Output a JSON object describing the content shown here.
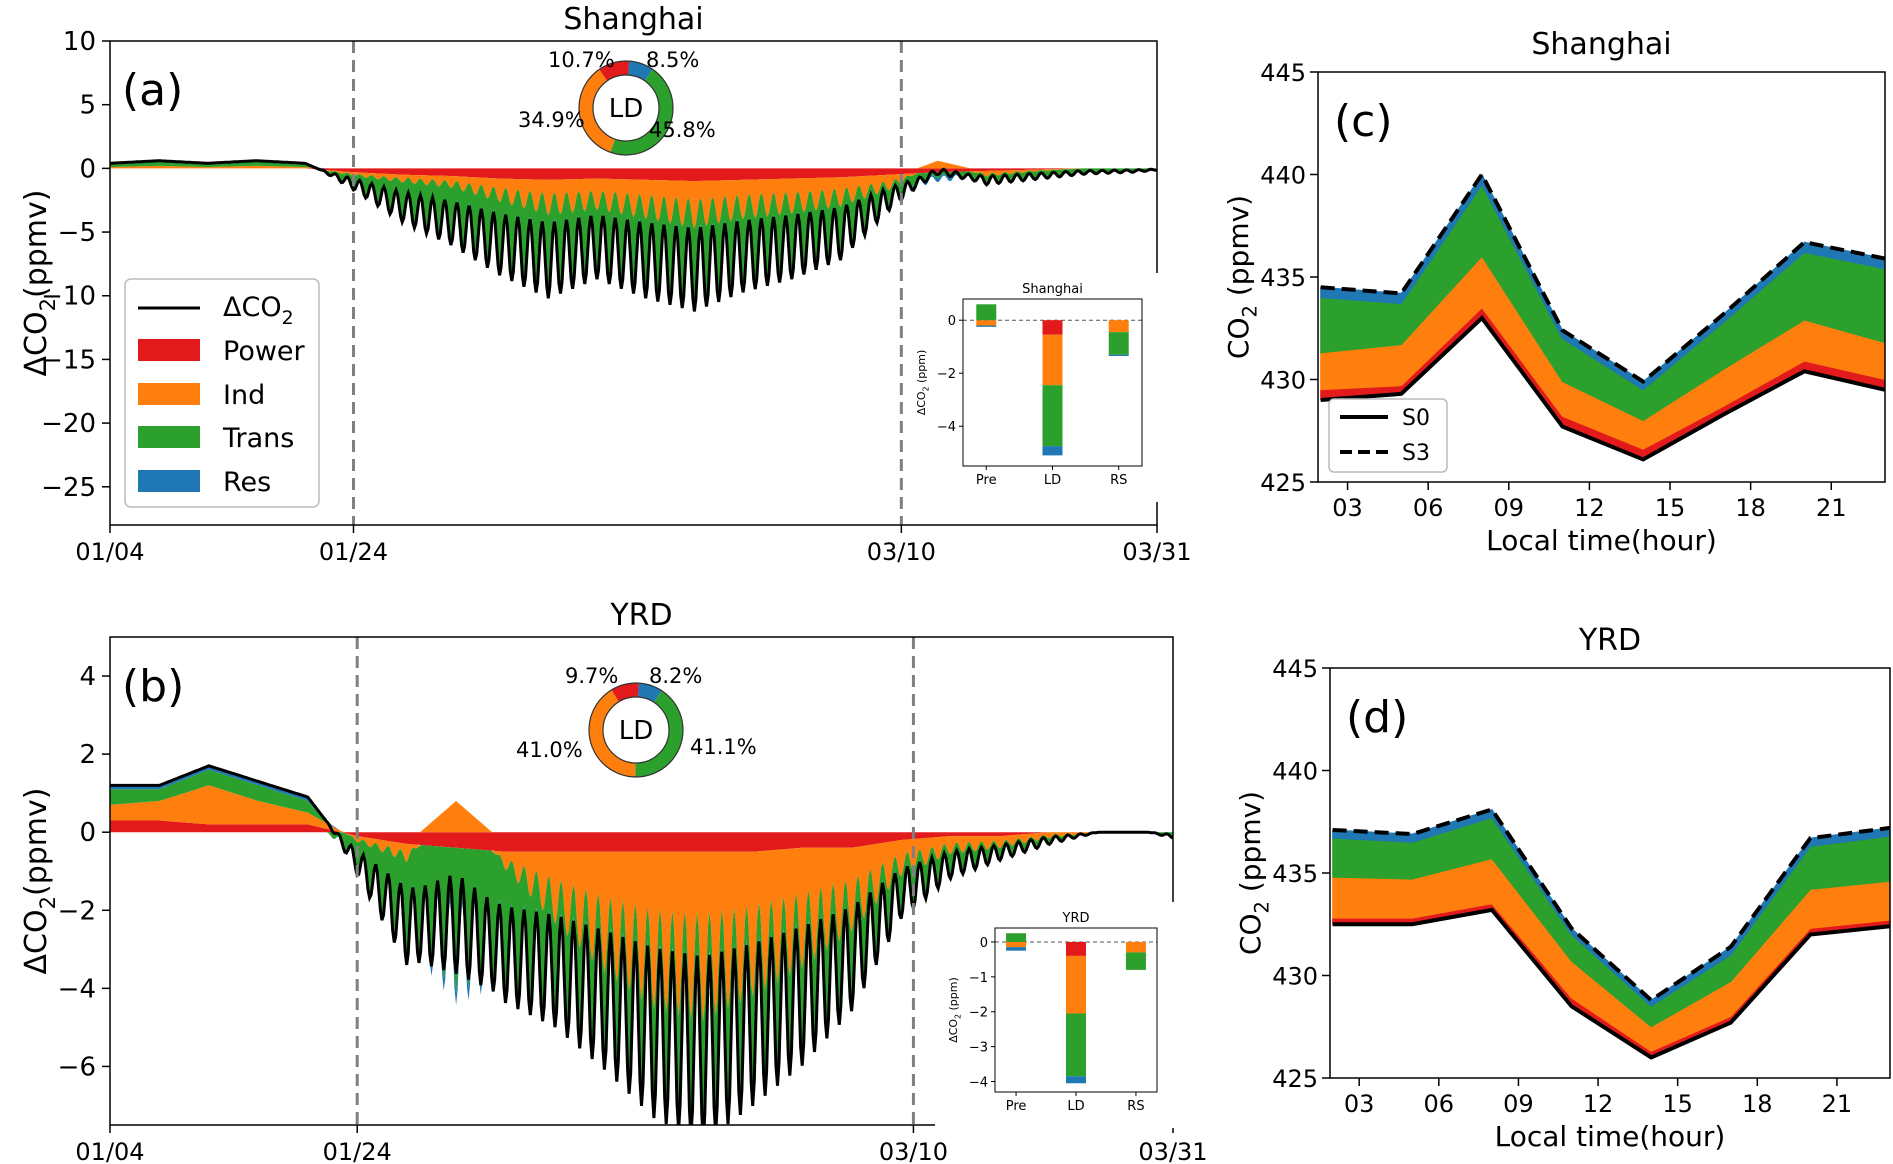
{
  "colors": {
    "power": "#e31a1c",
    "ind": "#ff7f0e",
    "trans": "#2ca02c",
    "res": "#1f77b4",
    "total": "#000000",
    "marker": "#808080"
  },
  "panels": {
    "a": {
      "title": "Shanghai",
      "label": "(a)",
      "ylabel": "ΔCO",
      "ylabel_sub": "2",
      "ylabel_unit": "(ppmv)"
    },
    "b": {
      "title": "YRD",
      "label": "(b)",
      "ylabel": "ΔCO",
      "ylabel_sub": "2",
      "ylabel_unit": "(ppmv)"
    },
    "c": {
      "title": "Shanghai",
      "label": "(c)",
      "ylabel": "CO",
      "ylabel_sub": "2",
      "ylabel_unit": " (ppmv)",
      "xlabel": "Local time(hour)"
    },
    "d": {
      "title": "YRD",
      "label": "(d)",
      "ylabel": "CO",
      "ylabel_sub": "2",
      "ylabel_unit": " (ppmv)",
      "xlabel": "Local time(hour)"
    }
  },
  "legend_ab": {
    "total": "ΔCO",
    "total_sub": "2",
    "power": "Power",
    "ind": "Ind",
    "trans": "Trans",
    "res": "Res"
  },
  "legend_cd": {
    "s0": "S0",
    "s3": "S3"
  },
  "donuts": {
    "a": {
      "center": "LD",
      "labels": [
        "10.7%",
        "8.5%",
        "45.8%",
        "34.9%"
      ],
      "values": {
        "power": 10.7,
        "res": 8.5,
        "trans": 45.8,
        "ind": 34.9
      }
    },
    "b": {
      "center": "LD",
      "labels": [
        "9.7%",
        "8.2%",
        "41.1%",
        "41.0%"
      ],
      "values": {
        "power": 9.7,
        "res": 8.2,
        "trans": 41.1,
        "ind": 41.0
      }
    }
  },
  "chart_data": [
    {
      "panel": "a",
      "type": "area",
      "title": "Shanghai",
      "ylabel": "ΔCO2(ppmv)",
      "ylim": [
        -28,
        10
      ],
      "yticks": [
        10,
        5,
        0,
        -5,
        -10,
        -15,
        -20,
        -25
      ],
      "xticks": [
        "01/04",
        "01/24",
        "03/10",
        "03/31"
      ],
      "tick_day_positions": [
        0,
        20,
        65,
        86
      ],
      "period_markers": [
        "01/24",
        "03/10"
      ],
      "x_days": [
        0,
        4,
        8,
        12,
        16,
        20,
        24,
        28,
        32,
        36,
        40,
        44,
        48,
        52,
        56,
        60,
        64,
        68,
        72,
        76,
        80,
        84,
        86
      ],
      "series": [
        {
          "name": "Power",
          "values": [
            0,
            0,
            0,
            0,
            0,
            -0.3,
            -0.5,
            -0.6,
            -0.8,
            -0.9,
            -0.8,
            -0.9,
            -1.0,
            -0.9,
            -0.8,
            -0.7,
            -0.5,
            -0.3,
            -0.2,
            -0.1,
            0,
            0,
            0
          ]
        },
        {
          "name": "Ind",
          "values": [
            0.1,
            0.2,
            0.1,
            0.2,
            0.1,
            -0.2,
            -0.4,
            -0.6,
            -1.2,
            -1.8,
            -1.6,
            -2.0,
            -2.4,
            -2.0,
            -1.8,
            -1.5,
            -0.8,
            0.6,
            -0.3,
            -0.1,
            0,
            0,
            0
          ]
        },
        {
          "name": "Trans",
          "values": [
            0.2,
            0.3,
            0.2,
            0.3,
            0.2,
            -0.6,
            -1.8,
            -2.6,
            -3.4,
            -3.8,
            -3.2,
            -3.6,
            -3.8,
            -3.4,
            -3.0,
            -2.4,
            -0.8,
            -0.3,
            -0.3,
            -0.3,
            -0.2,
            -0.2,
            -0.1
          ]
        },
        {
          "name": "Res",
          "values": [
            0.1,
            0.1,
            0.1,
            0.1,
            0.1,
            -0.1,
            -0.2,
            -0.3,
            -0.3,
            -0.4,
            -0.3,
            -0.4,
            -0.4,
            -0.3,
            -0.3,
            -0.3,
            -0.2,
            -0.2,
            -0.1,
            -0.1,
            -0.1,
            0,
            0
          ]
        },
        {
          "name": "ΔCO2",
          "values": [
            0.4,
            0.6,
            0.4,
            0.6,
            0.4,
            -1.2,
            -2.9,
            -4.1,
            -5.7,
            -6.9,
            -5.9,
            -6.9,
            -7.6,
            -6.6,
            -5.9,
            -4.9,
            -2.3,
            0.1,
            -0.9,
            -0.6,
            -0.3,
            -0.2,
            -0.1
          ]
        }
      ],
      "inset": {
        "title": "Shanghai",
        "ylabel": "ΔCO2 (ppm)",
        "categories": [
          "Pre",
          "LD",
          "RS"
        ],
        "ylim": [
          -5.5,
          0.8
        ],
        "yticks": [
          0,
          -2,
          -4
        ],
        "stacks": {
          "Pre": {
            "Trans": 0.6,
            "Ind": -0.2,
            "Res": -0.05
          },
          "LD": {
            "Power": -0.55,
            "Ind": -1.9,
            "Trans": -2.3,
            "Res": -0.35
          },
          "RS": {
            "Ind": -0.45,
            "Trans": -0.85,
            "Res": -0.05
          }
        }
      }
    },
    {
      "panel": "b",
      "type": "area",
      "title": "YRD",
      "ylabel": "ΔCO2(ppmv)",
      "ylim": [
        -7.5,
        5
      ],
      "yticks": [
        4,
        2,
        0,
        -2,
        -4,
        -6
      ],
      "xticks": [
        "01/04",
        "01/24",
        "03/10",
        "03/31"
      ],
      "tick_day_positions": [
        0,
        20,
        65,
        86
      ],
      "period_markers": [
        "01/24",
        "03/10"
      ],
      "x_days": [
        0,
        4,
        8,
        12,
        16,
        20,
        24,
        28,
        32,
        36,
        40,
        44,
        48,
        52,
        56,
        60,
        64,
        68,
        72,
        76,
        80,
        84,
        86
      ],
      "series": [
        {
          "name": "Power",
          "values": [
            0.3,
            0.3,
            0.2,
            0.2,
            0.2,
            -0.1,
            -0.3,
            -0.4,
            -0.5,
            -0.5,
            -0.5,
            -0.5,
            -0.5,
            -0.5,
            -0.4,
            -0.4,
            -0.2,
            -0.1,
            -0.1,
            0,
            0,
            0,
            0
          ]
        },
        {
          "name": "Ind",
          "values": [
            0.4,
            0.5,
            1.0,
            0.6,
            0.3,
            -0.1,
            -0.3,
            0.8,
            -0.3,
            -1.2,
            -2.0,
            -2.6,
            -2.8,
            -2.4,
            -2.0,
            -1.4,
            -0.6,
            -0.3,
            -0.2,
            -0.1,
            0,
            0,
            0
          ]
        },
        {
          "name": "Trans",
          "values": [
            0.4,
            0.3,
            0.4,
            0.4,
            0.3,
            -0.5,
            -1.6,
            -2.4,
            -2.0,
            -1.5,
            -1.4,
            -1.6,
            -1.8,
            -1.6,
            -1.4,
            -1.2,
            -0.6,
            -0.3,
            -0.2,
            -0.1,
            0,
            0,
            -0.1
          ]
        },
        {
          "name": "Res",
          "values": [
            0.1,
            0.1,
            0.1,
            0.1,
            0.1,
            -0.05,
            -0.1,
            -0.2,
            -0.2,
            -0.2,
            -0.2,
            -0.2,
            -0.2,
            -0.2,
            -0.2,
            -0.1,
            -0.1,
            -0.1,
            0,
            0,
            0,
            0,
            0
          ]
        },
        {
          "name": "ΔCO2",
          "values": [
            1.2,
            0.6,
            1.7,
            1.3,
            0.5,
            -0.75,
            -2.3,
            -2.2,
            -3.0,
            -3.4,
            -4.1,
            -4.9,
            -5.3,
            -4.7,
            -4.0,
            -3.1,
            -1.5,
            -0.8,
            -0.5,
            -0.2,
            0,
            0,
            -0.1
          ]
        }
      ],
      "inset": {
        "title": "YRD",
        "ylabel": "ΔCO2 (ppm)",
        "categories": [
          "Pre",
          "LD",
          "RS"
        ],
        "ylim": [
          -4.3,
          0.4
        ],
        "yticks": [
          0,
          -1,
          -2,
          -3,
          -4
        ],
        "stacks": {
          "Pre": {
            "Trans": 0.25,
            "Res": -0.1,
            "Ind": -0.15
          },
          "LD": {
            "Power": -0.4,
            "Ind": -1.65,
            "Trans": -1.8,
            "Res": -0.2
          },
          "RS": {
            "Ind": -0.3,
            "Trans": -0.5
          }
        }
      }
    },
    {
      "panel": "c",
      "type": "area",
      "title": "Shanghai",
      "xlabel": "Local time(hour)",
      "ylabel": "CO2 (ppmv)",
      "ylim": [
        425,
        445
      ],
      "yticks": [
        425,
        430,
        435,
        440,
        445
      ],
      "xlim": [
        1.9,
        23
      ],
      "xticks": [
        "03",
        "06",
        "09",
        "12",
        "15",
        "18",
        "21"
      ],
      "x": [
        2,
        5,
        8,
        11,
        14,
        17,
        20,
        23
      ],
      "series": [
        {
          "name": "S0",
          "values": [
            429.0,
            429.3,
            433.0,
            427.7,
            426.1,
            428.3,
            430.4,
            429.5
          ]
        },
        {
          "name": "Power",
          "values": [
            429.5,
            429.7,
            433.5,
            428.2,
            426.6,
            428.7,
            430.9,
            430.0
          ]
        },
        {
          "name": "Ind",
          "values": [
            431.3,
            431.7,
            436.0,
            429.9,
            428.0,
            430.5,
            432.9,
            431.8
          ]
        },
        {
          "name": "Trans",
          "values": [
            434.0,
            433.7,
            439.5,
            432.0,
            429.5,
            432.8,
            436.2,
            435.4
          ]
        },
        {
          "name": "S3",
          "values": [
            434.5,
            434.2,
            440.0,
            432.4,
            429.9,
            433.2,
            436.7,
            435.9
          ]
        }
      ]
    },
    {
      "panel": "d",
      "type": "area",
      "title": "YRD",
      "xlabel": "Local time(hour)",
      "ylabel": "CO2 (ppmv)",
      "ylim": [
        425,
        445
      ],
      "yticks": [
        425,
        430,
        435,
        440,
        445
      ],
      "xlim": [
        1.9,
        23
      ],
      "xticks": [
        "03",
        "06",
        "09",
        "12",
        "15",
        "18",
        "21"
      ],
      "x": [
        2,
        5,
        8,
        11,
        14,
        17,
        20,
        23
      ],
      "series": [
        {
          "name": "S0",
          "values": [
            432.5,
            432.5,
            433.2,
            428.5,
            426.0,
            427.7,
            432.0,
            432.4
          ]
        },
        {
          "name": "Power",
          "values": [
            432.8,
            432.8,
            433.5,
            428.9,
            426.3,
            428.0,
            432.3,
            432.7
          ]
        },
        {
          "name": "Ind",
          "values": [
            434.8,
            434.7,
            435.7,
            430.7,
            427.5,
            429.7,
            434.2,
            434.6
          ]
        },
        {
          "name": "Trans",
          "values": [
            436.7,
            436.5,
            437.7,
            432.0,
            428.5,
            431.0,
            436.3,
            436.8
          ]
        },
        {
          "name": "S3",
          "values": [
            437.1,
            436.9,
            438.1,
            432.3,
            428.8,
            431.4,
            436.7,
            437.2
          ]
        }
      ]
    }
  ]
}
